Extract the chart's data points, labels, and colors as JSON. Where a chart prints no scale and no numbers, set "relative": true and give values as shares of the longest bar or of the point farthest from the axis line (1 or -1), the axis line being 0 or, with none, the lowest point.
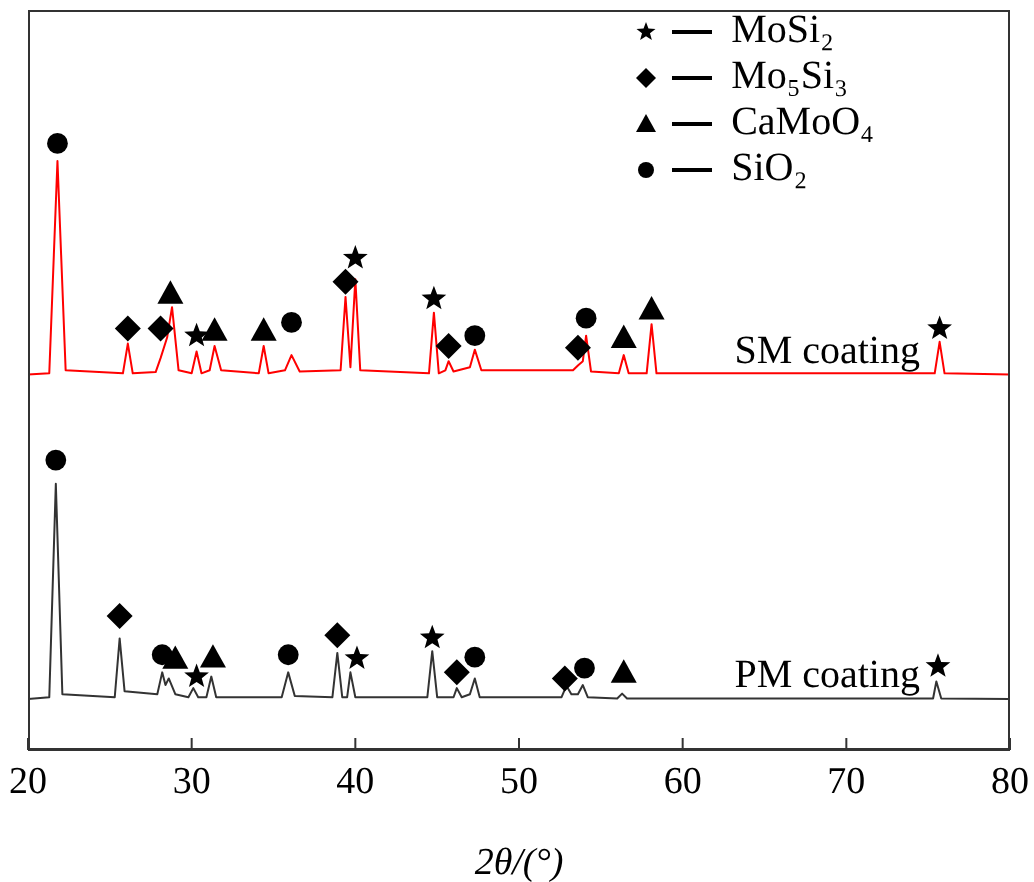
{
  "chart_data": {
    "type": "line",
    "relative": true,
    "xlabel": "2θ/(°)",
    "xlim": [
      20,
      80
    ],
    "xticks": [
      20,
      30,
      40,
      50,
      60,
      70,
      80
    ],
    "grid": false,
    "legend": "top right",
    "line_style": "solid",
    "series": [
      {
        "name": "SM coating",
        "color": "#ff0000",
        "marker": "none",
        "x": [
          20.0,
          21.3,
          21.8,
          22.3,
          25.8,
          26.1,
          26.4,
          27.8,
          28.1,
          28.5,
          28.8,
          29.2,
          30.0,
          30.3,
          30.6,
          31.1,
          31.4,
          31.8,
          34.1,
          34.4,
          34.7,
          35.7,
          36.1,
          36.6,
          39.1,
          39.4,
          39.7,
          40.0,
          40.3,
          44.5,
          44.8,
          45.1,
          45.5,
          45.7,
          46.0,
          47.0,
          47.3,
          47.7,
          53.3,
          53.6,
          53.9,
          54.1,
          54.4,
          56.1,
          56.4,
          56.7,
          57.8,
          58.1,
          58.4,
          75.4,
          75.7,
          76.0,
          80.0
        ],
        "values": [
          0.619,
          0.621,
          0.971,
          0.626,
          0.621,
          0.67,
          0.621,
          0.623,
          0.646,
          0.68,
          0.73,
          0.626,
          0.621,
          0.657,
          0.621,
          0.626,
          0.666,
          0.626,
          0.621,
          0.666,
          0.621,
          0.626,
          0.651,
          0.624,
          0.626,
          0.747,
          0.631,
          0.776,
          0.626,
          0.621,
          0.721,
          0.621,
          0.626,
          0.641,
          0.624,
          0.631,
          0.66,
          0.626,
          0.626,
          0.634,
          0.641,
          0.683,
          0.624,
          0.621,
          0.651,
          0.621,
          0.621,
          0.702,
          0.621,
          0.621,
          0.673,
          0.621,
          0.619
        ]
      },
      {
        "name": "PM coating",
        "color": "#333333",
        "marker": "none",
        "x": [
          20.0,
          21.3,
          21.7,
          22.1,
          25.3,
          25.6,
          25.9,
          27.9,
          28.2,
          28.4,
          28.6,
          29.0,
          29.8,
          30.1,
          30.4,
          30.9,
          31.2,
          31.5,
          35.5,
          35.9,
          36.3,
          38.6,
          38.9,
          39.2,
          39.5,
          39.7,
          40.0,
          44.4,
          44.7,
          45.0,
          46.0,
          46.2,
          46.5,
          47.0,
          47.3,
          47.6,
          52.6,
          52.9,
          53.2,
          53.6,
          53.9,
          54.2,
          56.0,
          56.3,
          56.6,
          75.3,
          75.5,
          75.8,
          80.0
        ],
        "values": [
          0.084,
          0.087,
          0.439,
          0.092,
          0.087,
          0.184,
          0.097,
          0.092,
          0.128,
          0.107,
          0.118,
          0.092,
          0.087,
          0.102,
          0.087,
          0.087,
          0.121,
          0.087,
          0.087,
          0.128,
          0.089,
          0.087,
          0.16,
          0.087,
          0.087,
          0.128,
          0.087,
          0.087,
          0.163,
          0.087,
          0.087,
          0.102,
          0.087,
          0.092,
          0.118,
          0.087,
          0.087,
          0.106,
          0.092,
          0.092,
          0.107,
          0.087,
          0.085,
          0.093,
          0.085,
          0.085,
          0.113,
          0.085,
          0.084
        ]
      },
      {
        "type": "scatter",
        "name": "MoSi₂",
        "color": "#000000",
        "marker": "star",
        "x": [
          30.3,
          40.0,
          44.8,
          75.7,
          30.3,
          40.1,
          44.7,
          75.6
        ],
        "values": [
          0.683,
          0.811,
          0.744,
          0.695,
          0.121,
          0.151,
          0.185,
          0.138
        ]
      },
      {
        "type": "scatter",
        "name": "Mo₅Si₃",
        "color": "#000000",
        "marker": "diamond",
        "x": [
          26.1,
          28.1,
          39.4,
          45.7,
          53.6,
          25.6,
          38.9,
          46.2,
          52.8
        ],
        "values": [
          0.695,
          0.695,
          0.772,
          0.666,
          0.663,
          0.221,
          0.189,
          0.128,
          0.118
        ]
      },
      {
        "type": "scatter",
        "name": "CaMoO₄",
        "color": "#000000",
        "marker": "triangle",
        "x": [
          28.7,
          31.4,
          34.4,
          56.4,
          58.1,
          29.0,
          31.3,
          56.4
        ],
        "values": [
          0.753,
          0.692,
          0.692,
          0.68,
          0.727,
          0.151,
          0.153,
          0.128
        ]
      },
      {
        "type": "scatter",
        "name": "SiO₂",
        "color": "#000000",
        "marker": "circle",
        "x": [
          21.8,
          36.1,
          47.3,
          54.1,
          21.7,
          28.2,
          35.9,
          47.3,
          54.0
        ],
        "values": [
          1.0,
          0.705,
          0.683,
          0.712,
          0.478,
          0.157,
          0.157,
          0.153,
          0.135
        ]
      }
    ]
  }
}
